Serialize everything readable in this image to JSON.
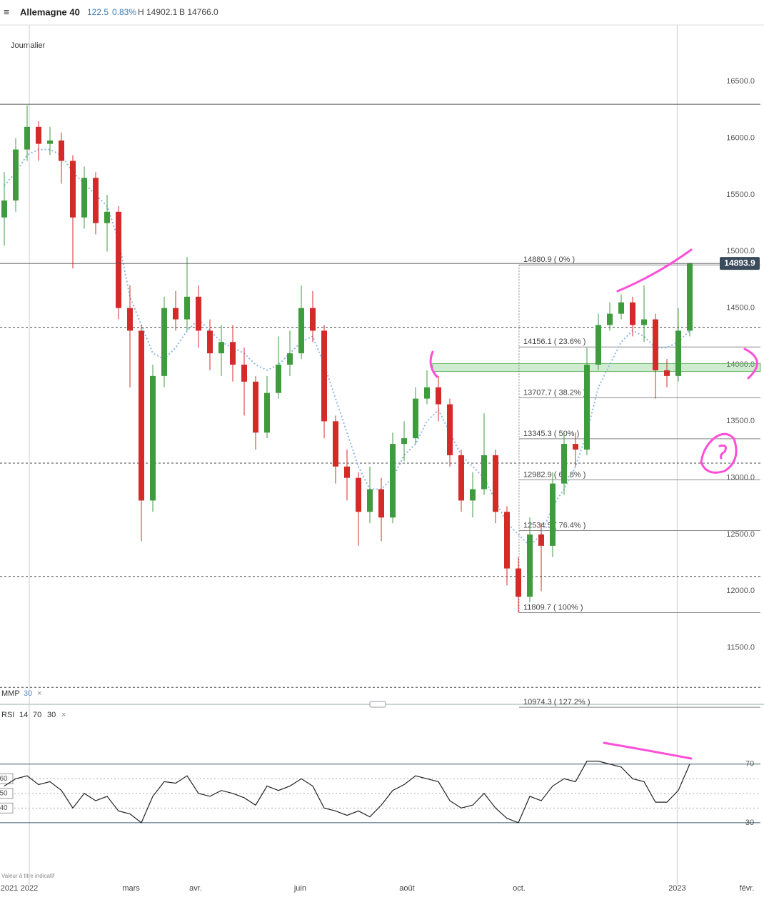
{
  "header": {
    "instrument": "Allemagne 40",
    "change": "122.5",
    "change_pct": "0.83%",
    "high": "H 14902.1",
    "low": "B 14766.0"
  },
  "chart_data": {
    "type": "candlestick",
    "timeframe": "Journalier",
    "note": "Valeur à titre indicatif",
    "colors": {
      "up": "#3e9b3e",
      "down": "#d42a2a",
      "rsi": "#222222",
      "annotation": "#ff4fd8"
    },
    "categories": [
      null,
      null,
      null,
      null,
      null,
      null,
      null,
      null,
      null,
      null,
      null,
      null,
      null,
      null,
      null,
      null,
      null,
      null,
      null,
      null,
      null,
      null,
      null,
      null,
      null,
      null,
      null,
      null,
      null,
      null,
      null,
      null,
      null,
      null,
      null,
      null,
      null,
      null,
      null,
      null,
      null,
      null,
      null,
      null,
      null,
      null,
      null,
      null,
      null,
      null,
      null,
      null,
      null,
      null,
      null,
      null,
      null,
      null,
      null,
      null,
      null
    ],
    "open": [
      15300,
      15450,
      15900,
      16100,
      15950,
      15980,
      15800,
      15300,
      15650,
      15250,
      15350,
      14500,
      14300,
      12800,
      13900,
      14500,
      14400,
      14600,
      14300,
      14100,
      14200,
      14000,
      13850,
      13400,
      13750,
      14000,
      14100,
      14500,
      14300,
      13500,
      13100,
      13000,
      12700,
      12900,
      12650,
      13300,
      13350,
      13700,
      13800,
      13650,
      13200,
      12800,
      12900,
      13200,
      12700,
      12200,
      11950,
      12500,
      12400,
      12950,
      13300,
      13250,
      14000,
      14350,
      14450,
      14550,
      14350,
      14400,
      13950,
      13900,
      14300
    ],
    "high": [
      15700,
      16000,
      16290,
      16150,
      16100,
      16050,
      15850,
      15750,
      15700,
      15500,
      15400,
      14700,
      14350,
      14000,
      14600,
      14650,
      14950,
      14700,
      14400,
      14350,
      14350,
      14150,
      13900,
      13900,
      14250,
      14300,
      14700,
      14650,
      14350,
      13550,
      13250,
      13050,
      13100,
      13000,
      13400,
      13500,
      13800,
      13950,
      13900,
      13700,
      13250,
      13050,
      13570,
      13250,
      12750,
      12300,
      12650,
      12600,
      13050,
      13400,
      13400,
      14150,
      14450,
      14550,
      14620,
      14600,
      14700,
      14450,
      14050,
      14500,
      14902.1
    ],
    "low": [
      15050,
      15350,
      15800,
      15800,
      15850,
      15600,
      14850,
      15200,
      15150,
      15000,
      14400,
      13800,
      12440,
      12700,
      13800,
      14300,
      14300,
      14150,
      13950,
      13900,
      13850,
      13550,
      13250,
      13350,
      13700,
      13900,
      14050,
      14200,
      13350,
      12950,
      12800,
      12400,
      12600,
      12440,
      12600,
      13150,
      13300,
      13650,
      13500,
      13100,
      12700,
      12650,
      12850,
      12600,
      12050,
      11809.7,
      11900,
      12000,
      12300,
      12850,
      13100,
      13200,
      13950,
      14300,
      14400,
      14250,
      14200,
      13700,
      13800,
      13850,
      14250
    ],
    "close": [
      15450,
      15900,
      16100,
      15950,
      15980,
      15800,
      15300,
      15650,
      15250,
      15350,
      14500,
      14300,
      12800,
      13900,
      14500,
      14400,
      14600,
      14300,
      14100,
      14200,
      14000,
      13850,
      13400,
      13750,
      14000,
      14100,
      14500,
      14300,
      13500,
      13100,
      13000,
      12700,
      12900,
      12650,
      13300,
      13350,
      13700,
      13800,
      13650,
      13200,
      12800,
      12900,
      13200,
      12700,
      12200,
      11950,
      12500,
      12400,
      12950,
      13300,
      13250,
      14000,
      14350,
      14450,
      14550,
      14350,
      14400,
      13950,
      13900,
      14300,
      14893.9
    ],
    "ma": {
      "name": "MMP",
      "period": 30,
      "color": "#8cb8e8",
      "values": [
        15580,
        15700,
        15850,
        15900,
        15900,
        15850,
        15700,
        15600,
        15500,
        15400,
        15100,
        14600,
        14350,
        14100,
        14050,
        14150,
        14300,
        14400,
        14300,
        14200,
        14150,
        14100,
        14000,
        13950,
        14000,
        14100,
        14200,
        14250,
        14000,
        13700,
        13400,
        13100,
        12900,
        12900,
        13000,
        13200,
        13300,
        13500,
        13600,
        13400,
        13200,
        13100,
        13000,
        12800,
        12600,
        12500,
        12400,
        12500,
        12750,
        12900,
        13100,
        13400,
        13800,
        14000,
        14200,
        14300,
        14250,
        14150,
        14150,
        14200,
        14300
      ]
    },
    "xlim": [
      -0.375,
      66.5
    ],
    "xticks": [
      {
        "value": 0.44,
        "label": "2021"
      },
      {
        "value": 2.19,
        "label": "2022"
      },
      {
        "value": 11.1,
        "label": "mars"
      },
      {
        "value": 16.75,
        "label": "avr."
      },
      {
        "value": 25.9,
        "label": "juin"
      },
      {
        "value": 35.25,
        "label": "août"
      },
      {
        "value": 45.06,
        "label": "oct."
      },
      {
        "value": 58.9,
        "label": "2023"
      },
      {
        "value": 65,
        "label": "févr."
      }
    ],
    "ylim": [
      11000,
      17000
    ],
    "yticks": [
      {
        "value": 11500,
        "label": "11500.0"
      },
      {
        "value": 12000,
        "label": "12000.0"
      },
      {
        "value": 12500,
        "label": "12500.0"
      },
      {
        "value": 13000,
        "label": "13000.0"
      },
      {
        "value": 13500,
        "label": "13500.0"
      },
      {
        "value": 14000,
        "label": "14000.0"
      },
      {
        "value": 14500,
        "label": "14500.0"
      },
      {
        "value": 15000,
        "label": "15000.0"
      },
      {
        "value": 15500,
        "label": "15500.0"
      },
      {
        "value": 16000,
        "label": "16000.0"
      },
      {
        "value": 16500,
        "label": "16500.0"
      }
    ],
    "fib_start": 45.06,
    "fib_levels": [
      {
        "value": 14880.9,
        "label": "14880.9 ( 0% )"
      },
      {
        "value": 14156.1,
        "label": "14156.1 ( 23.6% )"
      },
      {
        "value": 13707.7,
        "label": "13707.7 ( 38.2% )"
      },
      {
        "value": 13345.3,
        "label": "13345.3 ( 50% )"
      },
      {
        "value": 12982.9,
        "label": "12982.9 ( 61.8% )"
      },
      {
        "value": 12534.5,
        "label": "12534.5 ( 76.4% )"
      },
      {
        "value": 11809.7,
        "label": "11809.7 ( 100% )"
      },
      {
        "value": 10974.3,
        "label": "10974.3 ( 127.2% )"
      }
    ],
    "solid_lines": [
      16300
    ],
    "dashed_lines": [
      14330,
      13130,
      12130,
      11150
    ],
    "zone": {
      "low": 13940,
      "high": 14010,
      "start": 37.5
    },
    "rsi": {
      "name": "RSI",
      "period": 14,
      "upper": 70,
      "lower": 30,
      "ylim": [
        -10,
        103
      ],
      "yticks": [
        30,
        70
      ],
      "guides": [
        60,
        50,
        40
      ],
      "values": [
        55,
        60,
        62,
        56,
        58,
        52,
        40,
        50,
        45,
        48,
        38,
        36,
        30,
        48,
        58,
        57,
        62,
        50,
        48,
        52,
        50,
        47,
        42,
        55,
        52,
        55,
        60,
        55,
        40,
        38,
        35,
        38,
        34,
        42,
        52,
        56,
        62,
        60,
        58,
        45,
        40,
        42,
        50,
        40,
        33,
        30,
        48,
        45,
        55,
        60,
        58,
        72,
        72,
        70,
        68,
        60,
        58,
        44,
        44,
        52,
        70
      ]
    }
  }
}
